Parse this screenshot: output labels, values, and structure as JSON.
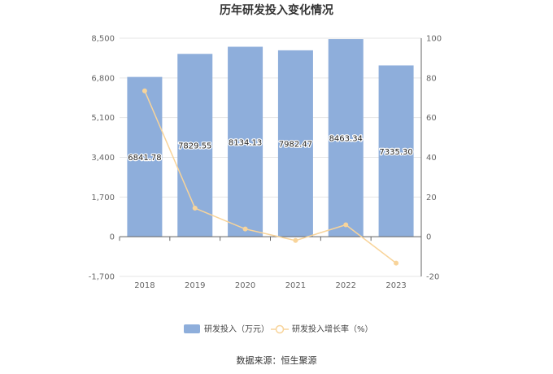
{
  "chart_data": {
    "type": "bar",
    "title": "历年研发投入变化情况",
    "categories": [
      "2018",
      "2019",
      "2020",
      "2021",
      "2022",
      "2023"
    ],
    "series": [
      {
        "name": "研发投入（万元）",
        "type": "bar",
        "axis": "left",
        "color": "#8eaedb",
        "values": [
          6841.78,
          7829.55,
          8134.13,
          7982.47,
          8463.34,
          7335.3
        ],
        "labels": [
          "6841.78",
          "7829.55",
          "8134.13",
          "7982.47",
          "8463.34",
          "7335.30"
        ]
      },
      {
        "name": "研发投入增长率（%）",
        "type": "line",
        "axis": "right",
        "color": "#f8d49a",
        "values": [
          73.5,
          14.4,
          3.9,
          -1.9,
          6.0,
          -13.3
        ]
      }
    ],
    "left_axis": {
      "min": -1700,
      "max": 8500,
      "ticks": [
        "-1,700",
        "0",
        "1,700",
        "3,400",
        "5,100",
        "6,800",
        "8,500"
      ],
      "tick_values": [
        -1700,
        0,
        1700,
        3400,
        5100,
        6800,
        8500
      ]
    },
    "right_axis": {
      "min": -20,
      "max": 100,
      "ticks": [
        "-20",
        "0",
        "20",
        "40",
        "60",
        "80",
        "100"
      ],
      "tick_values": [
        -20,
        0,
        20,
        40,
        60,
        80,
        100
      ]
    },
    "grid": true,
    "legend_position": "bottom-center",
    "source": "数据来源：恒生聚源"
  }
}
